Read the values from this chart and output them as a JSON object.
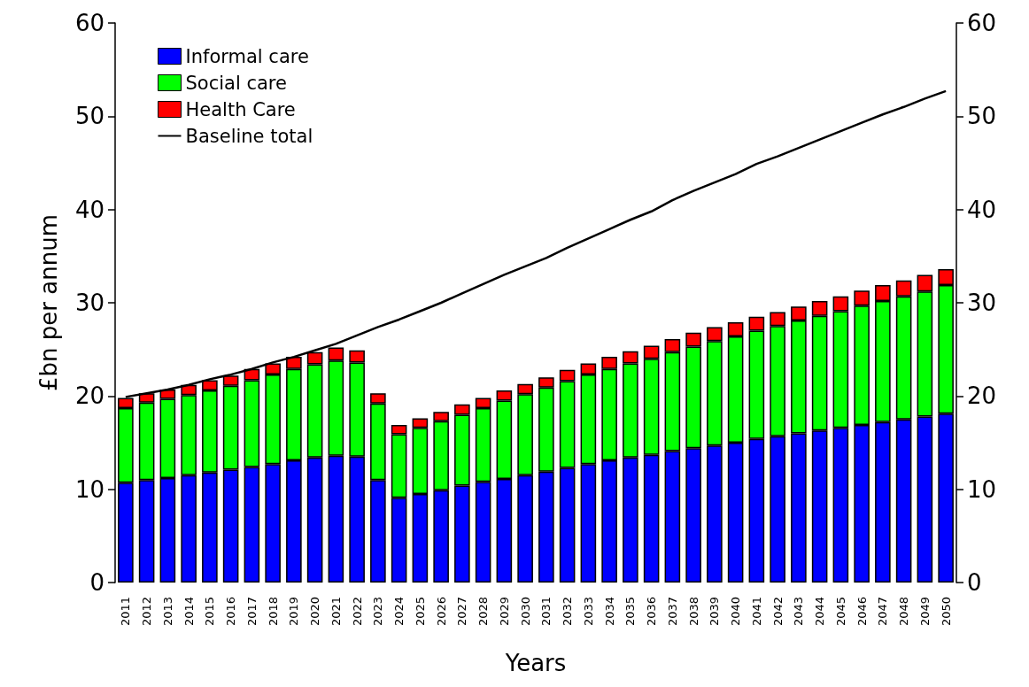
{
  "chart_data": {
    "type": "bar",
    "stacked": true,
    "xlabel": "Years",
    "ylabel": "£bn per annum",
    "categories": [
      "2011",
      "2012",
      "2013",
      "2014",
      "2015",
      "2016",
      "2017",
      "2018",
      "2019",
      "2020",
      "2021",
      "2022",
      "2023",
      "2024",
      "2025",
      "2026",
      "2027",
      "2028",
      "2029",
      "2030",
      "2031",
      "2032",
      "2033",
      "2034",
      "2035",
      "2036",
      "2037",
      "2038",
      "2039",
      "2040",
      "2041",
      "2042",
      "2043",
      "2044",
      "2045",
      "2046",
      "2047",
      "2048",
      "2049",
      "2050"
    ],
    "series": [
      {
        "name": "Informal care",
        "color": "#0000ff",
        "values": [
          10.7,
          11.0,
          11.2,
          11.5,
          11.8,
          12.1,
          12.4,
          12.7,
          13.1,
          13.4,
          13.6,
          13.5,
          11.0,
          9.1,
          9.5,
          9.9,
          10.4,
          10.8,
          11.1,
          11.5,
          11.9,
          12.3,
          12.7,
          13.1,
          13.4,
          13.7,
          14.1,
          14.4,
          14.7,
          15.0,
          15.4,
          15.7,
          16.0,
          16.3,
          16.6,
          16.9,
          17.2,
          17.5,
          17.8,
          18.1
        ]
      },
      {
        "name": "Social care",
        "color": "#00ff00",
        "values": [
          8.0,
          8.3,
          8.5,
          8.6,
          8.8,
          9.0,
          9.3,
          9.6,
          9.8,
          10.0,
          10.2,
          10.1,
          8.2,
          6.8,
          7.1,
          7.4,
          7.6,
          7.9,
          8.4,
          8.7,
          9.0,
          9.3,
          9.6,
          9.8,
          10.1,
          10.3,
          10.6,
          10.9,
          11.2,
          11.4,
          11.6,
          11.8,
          12.1,
          12.3,
          12.5,
          12.8,
          13.0,
          13.2,
          13.4,
          13.8
        ]
      },
      {
        "name": "Health Care",
        "color": "#ff0000",
        "values": [
          1.1,
          1.0,
          1.0,
          1.1,
          1.1,
          1.1,
          1.2,
          1.2,
          1.3,
          1.3,
          1.4,
          1.3,
          1.1,
          1.0,
          1.0,
          1.0,
          1.1,
          1.1,
          1.1,
          1.1,
          1.1,
          1.2,
          1.2,
          1.3,
          1.3,
          1.4,
          1.4,
          1.5,
          1.5,
          1.5,
          1.5,
          1.5,
          1.5,
          1.6,
          1.6,
          1.6,
          1.7,
          1.7,
          1.8,
          1.7
        ]
      },
      {
        "name": "Baseline total",
        "type": "line",
        "color": "#000000",
        "marker": "none",
        "line_style": "solid",
        "values": [
          19.9,
          20.3,
          20.7,
          21.2,
          21.8,
          22.3,
          22.9,
          23.6,
          24.2,
          24.9,
          25.6,
          26.5,
          27.4,
          28.2,
          29.1,
          30.0,
          31.0,
          32.0,
          33.0,
          33.9,
          34.8,
          35.9,
          36.9,
          37.9,
          38.9,
          39.8,
          41.0,
          42.0,
          42.9,
          43.8,
          44.9,
          45.7,
          46.6,
          47.5,
          48.4,
          49.3,
          50.2,
          51.0,
          51.9,
          52.7
        ]
      }
    ],
    "ylim": [
      0,
      60
    ],
    "yticks": [
      0,
      10,
      20,
      30,
      40,
      50,
      60
    ],
    "y2lim": [
      0,
      60
    ],
    "y2ticks": [
      0,
      10,
      20,
      30,
      40,
      50,
      60
    ],
    "grid": false,
    "legend": "top left"
  }
}
